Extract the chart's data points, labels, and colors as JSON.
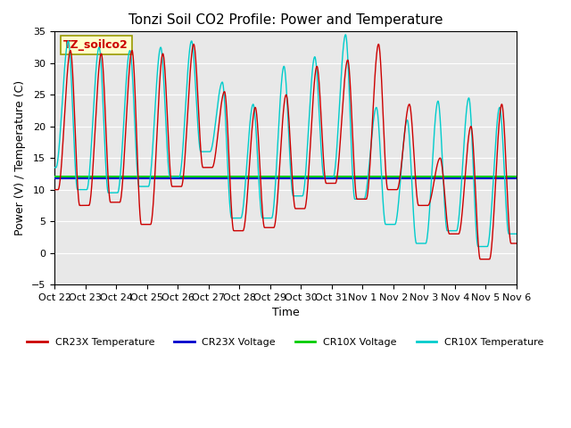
{
  "title": "Tonzi Soil CO2 Profile: Power and Temperature",
  "xlabel": "Time",
  "ylabel": "Power (V) / Temperature (C)",
  "ylim": [
    -5,
    35
  ],
  "yticks": [
    -5,
    0,
    5,
    10,
    15,
    20,
    25,
    30,
    35
  ],
  "xtick_labels": [
    "Oct 22",
    "Oct 23",
    "Oct 24",
    "Oct 25",
    "Oct 26",
    "Oct 27",
    "Oct 28",
    "Oct 29",
    "Oct 30",
    "Oct 31",
    "Nov 1",
    "Nov 2",
    "Nov 3",
    "Nov 4",
    "Nov 5",
    "Nov 6"
  ],
  "cr23x_voltage_value": 11.8,
  "cr10x_voltage_value": 12.0,
  "legend_labels": [
    "CR23X Temperature",
    "CR23X Voltage",
    "CR10X Voltage",
    "CR10X Temperature"
  ],
  "legend_colors": [
    "#cc0000",
    "#0000cc",
    "#00cc00",
    "#00cccc"
  ],
  "annotation_text": "TZ_soilco2",
  "annotation_bg": "#ffffcc",
  "annotation_text_color": "#cc0000",
  "bg_color": "#e8e8e8",
  "title_fontsize": 11,
  "axis_fontsize": 9,
  "tick_fontsize": 8,
  "red_peaks": [
    32.0,
    31.5,
    32.0,
    31.5,
    33.0,
    25.5,
    23.0,
    25.0,
    29.5,
    30.5,
    33.0,
    23.5,
    15.0,
    20.0,
    23.5
  ],
  "red_troughs": [
    10.0,
    7.5,
    8.0,
    4.5,
    10.5,
    13.5,
    3.5,
    4.0,
    7.0,
    11.0,
    8.5,
    10.0,
    7.5,
    3.0,
    -1.0,
    1.5
  ],
  "cyan_peaks": [
    33.5,
    32.5,
    32.0,
    32.5,
    33.5,
    27.0,
    23.5,
    29.5,
    31.0,
    34.5,
    23.0,
    21.0,
    24.0
  ],
  "cyan_troughs": [
    13.5,
    10.0,
    9.5,
    10.5,
    12.0,
    16.0,
    5.5,
    5.5,
    9.0,
    12.0,
    8.5,
    4.5,
    1.5,
    3.5
  ]
}
